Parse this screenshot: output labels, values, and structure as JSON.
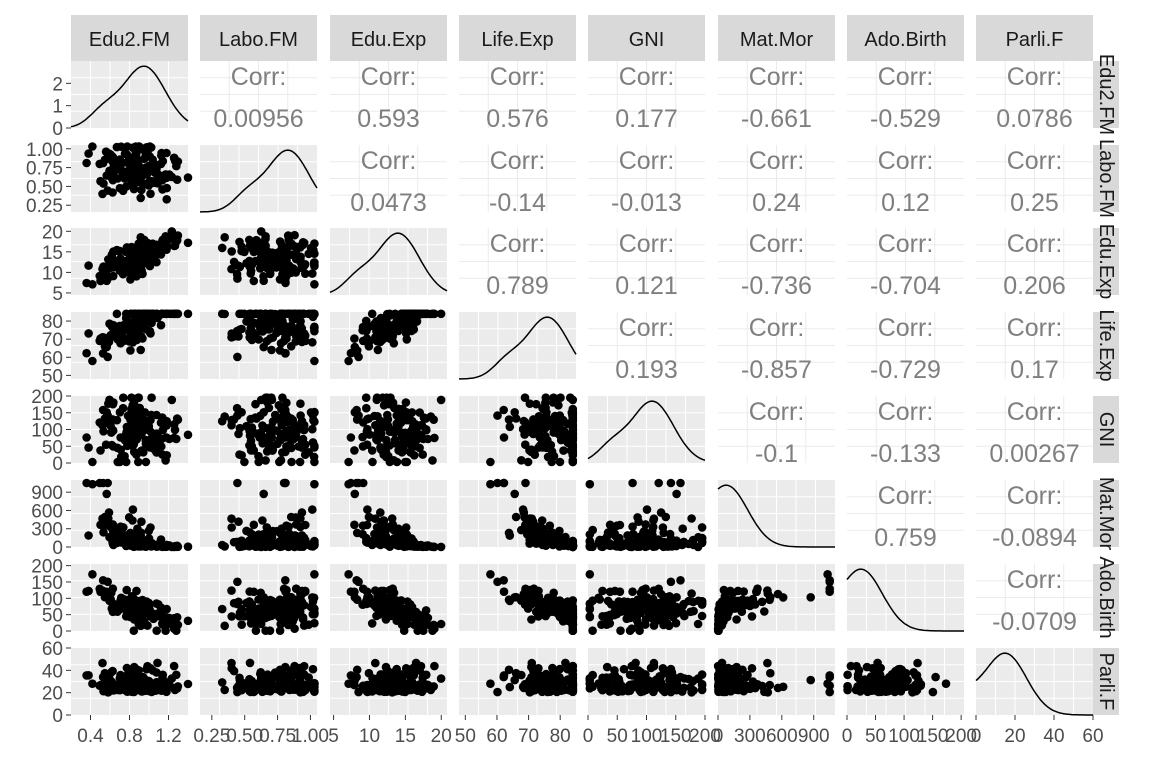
{
  "chart_data": {
    "type": "scatter",
    "variables": [
      "Edu2.FM",
      "Labo.FM",
      "Edu.Exp",
      "Life.Exp",
      "GNI",
      "Mat.Mor",
      "Ado.Birth",
      "Parli.F"
    ],
    "corr_label": "Corr:",
    "correlations": [
      [
        "",
        "0.00956",
        "0.593",
        "0.576",
        "0.177",
        "-0.661",
        "-0.529",
        "0.0786"
      ],
      [
        "",
        "",
        "0.0473",
        "-0.14",
        "-0.013",
        "0.24",
        "0.12",
        "0.25"
      ],
      [
        "",
        "",
        "",
        "0.789",
        "0.121",
        "-0.736",
        "-0.704",
        "0.206"
      ],
      [
        "",
        "",
        "",
        "",
        "0.193",
        "-0.857",
        "-0.729",
        "0.17"
      ],
      [
        "",
        "",
        "",
        "",
        "",
        "-0.1",
        "-0.133",
        "0.00267"
      ],
      [
        "",
        "",
        "",
        "",
        "",
        "",
        "0.759",
        "-0.0894"
      ],
      [
        "",
        "",
        "",
        "",
        "",
        "",
        "",
        "-0.0709"
      ],
      [
        "",
        "",
        "",
        "",
        "",
        "",
        "",
        ""
      ]
    ],
    "x_ticks": [
      [
        "0.4",
        "0.8",
        "1.2"
      ],
      [
        "0.25",
        "0.50",
        "0.75",
        "1.00"
      ],
      [
        "5",
        "10",
        "15",
        "20"
      ],
      [
        "50",
        "60",
        "70",
        "80"
      ],
      [
        "0",
        "50",
        "100",
        "150",
        "200"
      ],
      [
        "0",
        "300",
        "600",
        "900"
      ],
      [
        "0",
        "50",
        "100",
        "150",
        "200"
      ],
      [
        "0",
        "20",
        "40",
        "60"
      ]
    ],
    "y_ticks": [
      [
        "0",
        "1",
        "2"
      ],
      [
        "0.25",
        "0.50",
        "0.75",
        "1.00"
      ],
      [
        "5",
        "10",
        "15",
        "20"
      ],
      [
        "50",
        "60",
        "70",
        "80"
      ],
      [
        "0",
        "50",
        "100",
        "150",
        "200"
      ],
      [
        "0",
        "300",
        "600",
        "900"
      ],
      [
        "0",
        "50",
        "100",
        "150",
        "200"
      ],
      [
        "0",
        "20",
        "40",
        "60"
      ]
    ],
    "ranges": [
      [
        0.2,
        1.4
      ],
      [
        0.16,
        1.05
      ],
      [
        4.5,
        20.8
      ],
      [
        48,
        85
      ],
      [
        0,
        200
      ],
      [
        0,
        1100
      ],
      [
        0,
        205
      ],
      [
        0,
        60
      ]
    ],
    "diag_ylim": [
      0,
      3
    ],
    "density_peak": [
      0.95,
      0.83,
      14,
      76,
      110,
      80,
      25,
      15
    ],
    "grid": true,
    "panel_background": "#ebebeb",
    "strip_background": "#d9d9d9",
    "point_color": "#000000"
  }
}
